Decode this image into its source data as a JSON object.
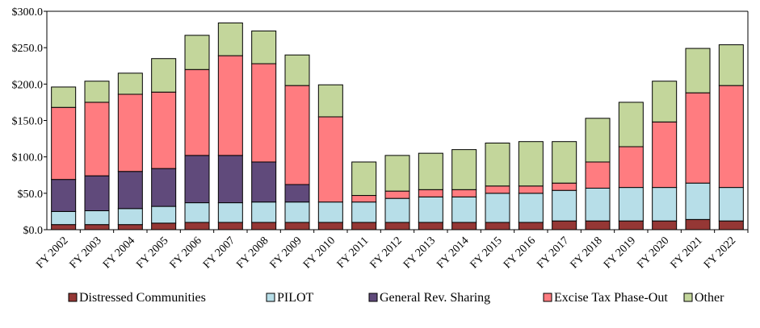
{
  "chart_data": {
    "type": "stacked_bar",
    "categories": [
      "FY 2002",
      "FY 2003",
      "FY 2004",
      "FY 2005",
      "FY 2006",
      "FY 2007",
      "FY 2008",
      "FY 2009",
      "FY 2010",
      "FY 2011",
      "FY 2012",
      "FY 2013",
      "FY 2014",
      "FY 2015",
      "FY 2016",
      "FY 2017",
      "FY 2018",
      "FY 2019",
      "FY 2020",
      "FY 2021",
      "FY 2022"
    ],
    "series": [
      {
        "name": "Distressed Communities",
        "color": "#953735",
        "values": [
          7,
          7,
          7,
          9,
          10,
          10,
          10,
          10,
          10,
          10,
          10,
          10,
          10,
          10,
          10,
          12,
          12,
          12,
          12,
          14,
          12
        ]
      },
      {
        "name": "PILOT",
        "color": "#b7dee8",
        "values": [
          18,
          19,
          22,
          23,
          27,
          27,
          28,
          28,
          28,
          28,
          33,
          35,
          35,
          40,
          40,
          42,
          45,
          46,
          46,
          50,
          46
        ]
      },
      {
        "name": "General Rev. Sharing",
        "color": "#604a7b",
        "values": [
          44,
          48,
          51,
          52,
          65,
          65,
          55,
          24,
          0,
          0,
          0,
          0,
          0,
          0,
          0,
          0,
          0,
          0,
          0,
          0,
          0
        ]
      },
      {
        "name": "Excise Tax Phase-Out",
        "color": "#ff7c80",
        "values": [
          99,
          101,
          106,
          105,
          118,
          137,
          135,
          136,
          117,
          9,
          10,
          10,
          10,
          10,
          10,
          10,
          36,
          56,
          90,
          124,
          140
        ]
      },
      {
        "name": "Other",
        "color": "#c3d69b",
        "values": [
          28,
          29,
          29,
          46,
          47,
          45,
          45,
          42,
          44,
          46,
          49,
          50,
          55,
          59,
          61,
          57,
          60,
          61,
          56,
          61,
          56
        ]
      }
    ],
    "ylim": [
      0,
      300
    ],
    "yticks": [
      {
        "value": 0,
        "label": "$0.0"
      },
      {
        "value": 50,
        "label": "$50.0"
      },
      {
        "value": 100,
        "label": "$100.0"
      },
      {
        "value": 150,
        "label": "$150.0"
      },
      {
        "value": 200,
        "label": "$200.0"
      },
      {
        "value": 250,
        "label": "$250.0"
      },
      {
        "value": 300,
        "label": "$300.0"
      }
    ],
    "grid": false,
    "legend": "bottom"
  }
}
